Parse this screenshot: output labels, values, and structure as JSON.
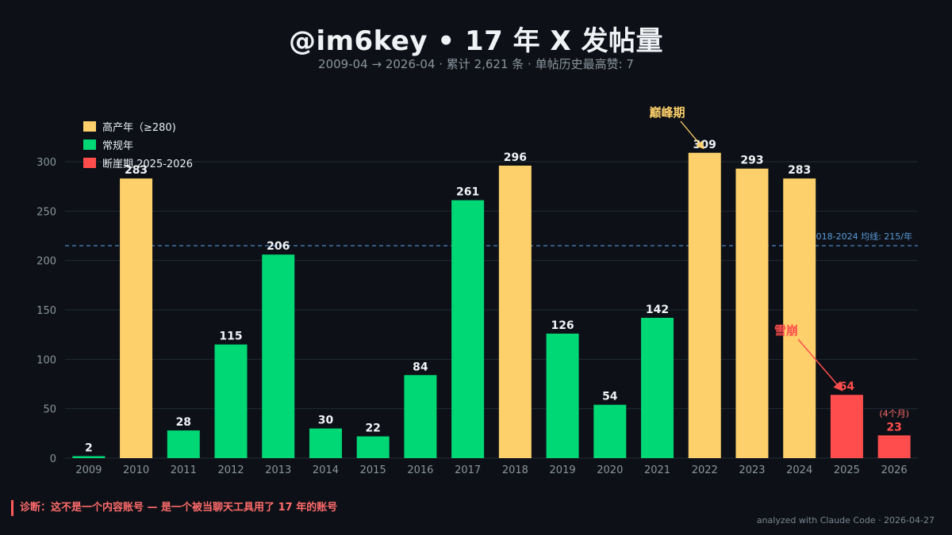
{
  "header": {
    "title": "@im6key • 17 年 X 发帖量",
    "subtitle": "2009-04 → 2026-04 · 累计 2,621 条 · 单帖历史最高赞: 7"
  },
  "legend": {
    "items": [
      {
        "label": "高产年（≥280)",
        "color": "#fdd06b"
      },
      {
        "label": "常规年",
        "color": "#00d775"
      },
      {
        "label": "断崖期 2025-2026",
        "color": "#ff4d4d"
      }
    ]
  },
  "colors": {
    "high": "#fdd06b",
    "normal": "#00d775",
    "cliff": "#ff4d4d",
    "avg_line": "#4a86c5"
  },
  "chart_data": {
    "type": "bar",
    "categories": [
      "2009",
      "2010",
      "2011",
      "2012",
      "2013",
      "2014",
      "2015",
      "2016",
      "2017",
      "2018",
      "2019",
      "2020",
      "2021",
      "2022",
      "2023",
      "2024",
      "2025",
      "2026"
    ],
    "values": [
      2,
      283,
      28,
      115,
      206,
      30,
      22,
      84,
      261,
      296,
      126,
      54,
      142,
      309,
      293,
      283,
      64,
      23
    ],
    "groups": [
      "normal",
      "high",
      "normal",
      "normal",
      "normal",
      "normal",
      "normal",
      "normal",
      "normal",
      "high",
      "normal",
      "normal",
      "normal",
      "high",
      "high",
      "high",
      "cliff",
      "cliff"
    ],
    "ylim": [
      0,
      320
    ],
    "yticks": [
      0,
      50,
      100,
      150,
      200,
      250,
      300
    ],
    "grid": true,
    "legend_position": "top-left",
    "reference_line": {
      "value": 215,
      "label": "2018-2024 均线: 215/年"
    },
    "annotations": {
      "peak": {
        "text": "巅峰期",
        "target_category": "2022"
      },
      "collapse": {
        "text": "雪崩",
        "target_category": "2025"
      },
      "partial": {
        "text": "(4个月)",
        "target_category": "2026"
      }
    }
  },
  "diagnosis": "诊断：这不是一个内容账号 — 是一个被当聊天工具用了 17 年的账号",
  "footer": "analyzed with Claude Code · 2026-04-27"
}
